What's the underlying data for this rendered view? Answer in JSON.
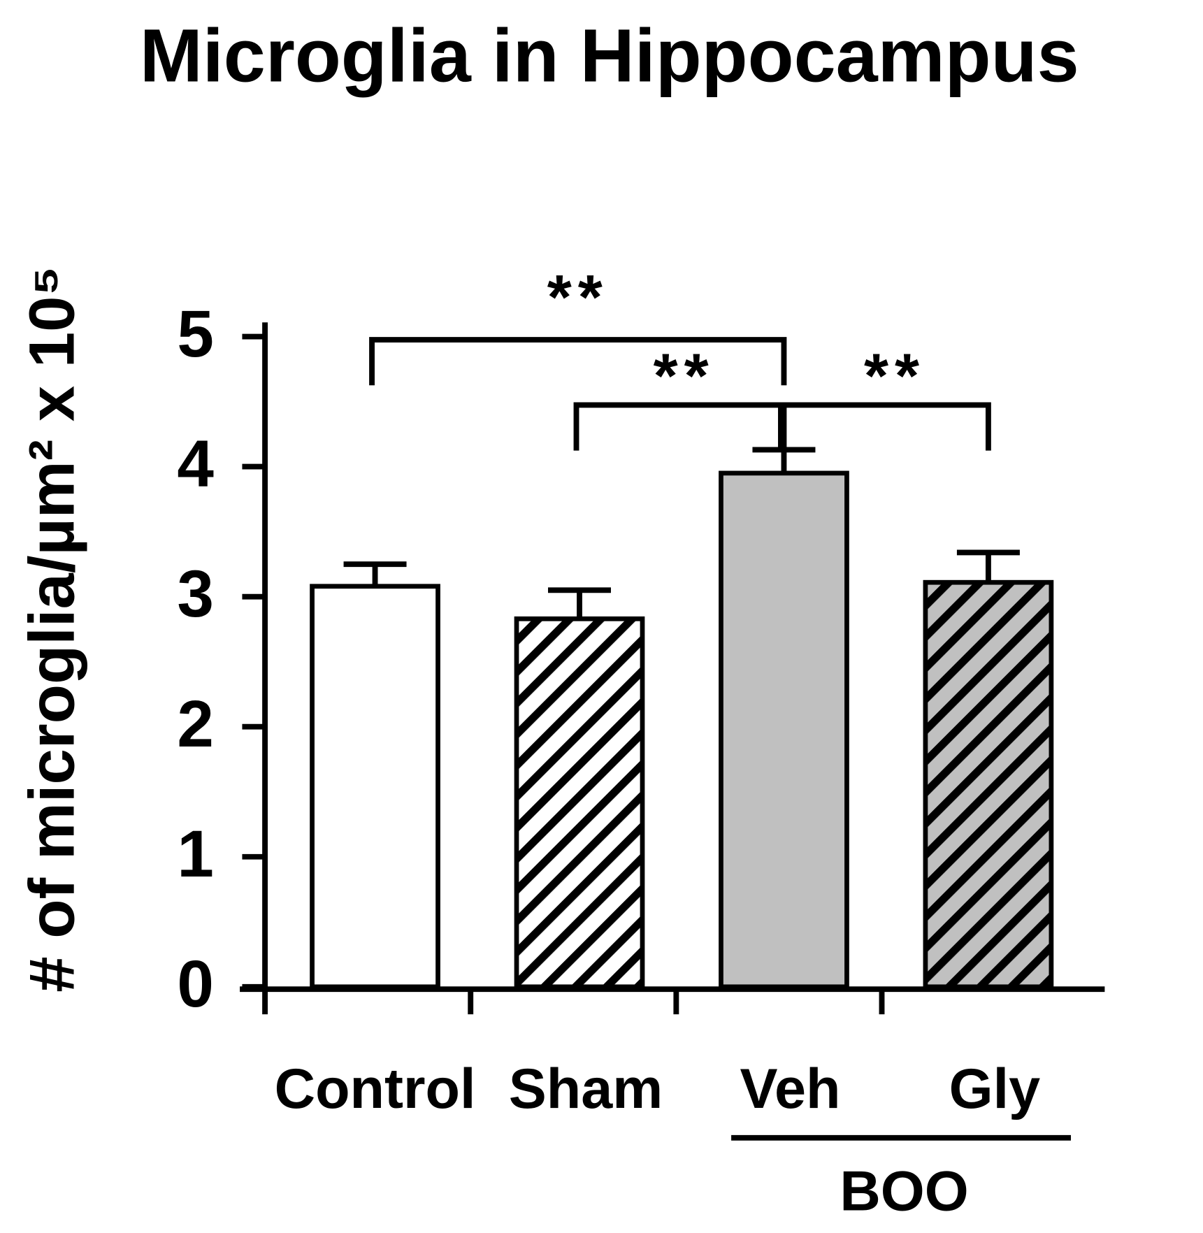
{
  "chart_data": {
    "type": "bar",
    "title": "Microglia in Hippocampus",
    "y_label": "# of microglia/µm² x 10⁵",
    "categories": [
      "Control",
      "Sham",
      "Veh",
      "Gly"
    ],
    "group_label": "BOO",
    "values": [
      3.08,
      2.83,
      3.95,
      3.11
    ],
    "errors": [
      0.17,
      0.22,
      0.18,
      0.23
    ],
    "colors": [
      "#ffffff",
      "#ffffff",
      "#c0c0c0",
      "#c0c0c0"
    ],
    "hatch": [
      false,
      true,
      false,
      true
    ],
    "annotations": [
      "**",
      "**",
      "**"
    ],
    "ylim": [
      0,
      5
    ],
    "yticks": [
      0,
      1,
      2,
      3,
      4,
      5
    ]
  }
}
